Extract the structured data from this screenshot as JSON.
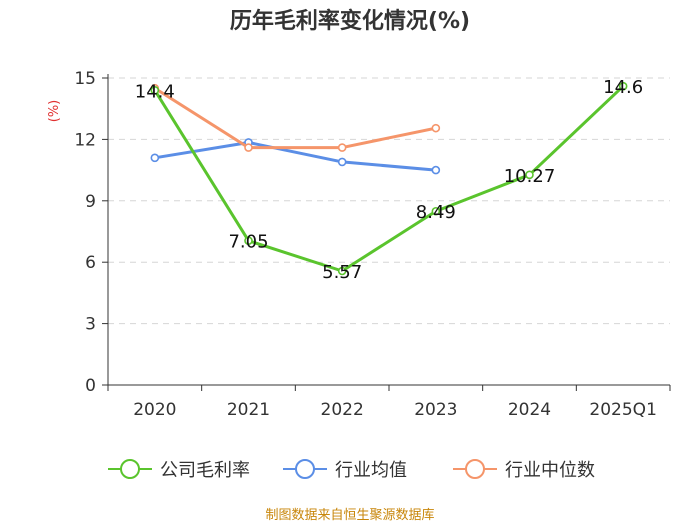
{
  "chart_data": {
    "type": "line",
    "title": "历年毛利率变化情况(%)",
    "ylabel": "(%)",
    "categories": [
      "2020",
      "2021",
      "2022",
      "2023",
      "2024",
      "2025Q1"
    ],
    "ylim": [
      0,
      15
    ],
    "yticks": [
      0,
      3,
      6,
      9,
      12,
      15
    ],
    "grid": true,
    "legend_position": "bottom",
    "series": [
      {
        "name": "公司毛利率",
        "color": "#5ac42d",
        "values": [
          14.4,
          7.05,
          5.57,
          8.49,
          10.27,
          14.6
        ],
        "labels": [
          "14.4",
          "7.05",
          "5.57",
          "8.49",
          "10.27",
          "14.6"
        ]
      },
      {
        "name": "行业均值",
        "color": "#5b8ee6",
        "values": [
          11.1,
          11.85,
          10.9,
          10.5,
          null,
          null
        ]
      },
      {
        "name": "行业中位数",
        "color": "#f5956a",
        "values": [
          14.5,
          11.6,
          11.6,
          12.55,
          null,
          null
        ]
      }
    ]
  },
  "source": "制图数据来自恒生聚源数据库"
}
